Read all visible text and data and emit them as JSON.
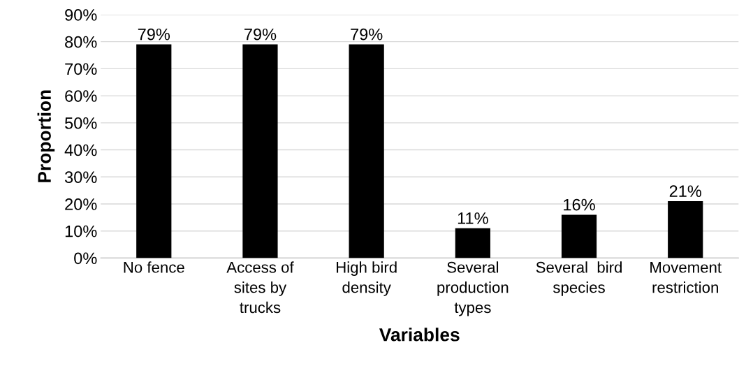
{
  "chart_data": {
    "type": "bar",
    "xlabel": "Variables",
    "ylabel": "Proportion",
    "categories": [
      "No fence",
      "Access of\nsites by\ntrucks",
      "High bird\ndensity",
      "Several\nproduction\ntypes",
      "Several  bird\nspecies",
      "Movement\nrestriction"
    ],
    "values": [
      79,
      79,
      79,
      11,
      16,
      21
    ],
    "value_labels": [
      "79%",
      "79%",
      "79%",
      "11%",
      "16%",
      "21%"
    ],
    "color": "#000000",
    "ylim": [
      0,
      90
    ],
    "yticks": [
      {
        "value": 0,
        "label": "0%"
      },
      {
        "value": 10,
        "label": "10%"
      },
      {
        "value": 20,
        "label": "20%"
      },
      {
        "value": 30,
        "label": "30%"
      },
      {
        "value": 40,
        "label": "40%"
      },
      {
        "value": 50,
        "label": "50%"
      },
      {
        "value": 60,
        "label": "60%"
      },
      {
        "value": 70,
        "label": "70%"
      },
      {
        "value": 80,
        "label": "80%"
      },
      {
        "value": 90,
        "label": "90%"
      }
    ],
    "grid": "y"
  }
}
